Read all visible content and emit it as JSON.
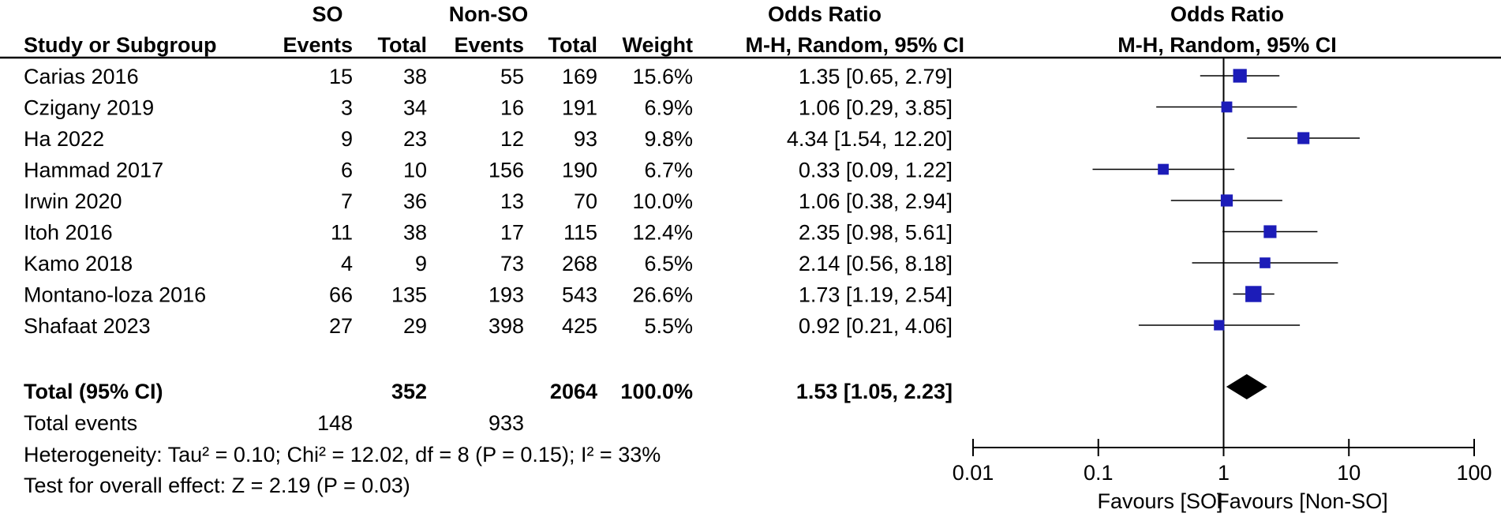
{
  "headers": {
    "group_so": "SO",
    "group_nonso": "Non-SO",
    "or_group": "Odds Ratio",
    "plot_group": "Odds Ratio",
    "study": "Study or Subgroup",
    "so_events": "Events",
    "so_total": "Total",
    "nonso_events": "Events",
    "nonso_total": "Total",
    "weight": "Weight",
    "or_method": "M-H, Random, 95% CI",
    "plot_method": "M-H, Random, 95% CI"
  },
  "totals_row": {
    "label": "Total (95% CI)",
    "so_total": "352",
    "nonso_total": "2064",
    "weight": "100.0%",
    "or_text": "1.53 [1.05, 2.23]"
  },
  "total_events": {
    "label": "Total events",
    "so": "148",
    "nonso": "933"
  },
  "heterogeneity": "Heterogeneity: Tau² = 0.10; Chi² = 12.02, df = 8 (P = 0.15); I² = 33%",
  "overall_effect": "Test for overall effect: Z = 2.19 (P = 0.03)",
  "axis": {
    "scale": "log",
    "ticks": [
      "0.01",
      "0.1",
      "1",
      "10",
      "100"
    ],
    "favours_left": "Favours [SO]",
    "favours_right": "Favours [Non-SO]"
  },
  "colors": {
    "marker": "#1c1cb8",
    "diamond": "#000000"
  },
  "chart_data": {
    "type": "forest",
    "x_scale": "log",
    "xlim": [
      0.01,
      100
    ],
    "studies": [
      {
        "name": "Carias 2016",
        "so_events": "15",
        "so_total": "38",
        "nonso_events": "55",
        "nonso_total": "169",
        "weight": "15.6%",
        "or_text": "1.35 [0.65, 2.79]",
        "or": 1.35,
        "lo": 0.65,
        "hi": 2.79,
        "w": 15.6
      },
      {
        "name": "Czigany 2019",
        "so_events": "3",
        "so_total": "34",
        "nonso_events": "16",
        "nonso_total": "191",
        "weight": "6.9%",
        "or_text": "1.06 [0.29, 3.85]",
        "or": 1.06,
        "lo": 0.29,
        "hi": 3.85,
        "w": 6.9
      },
      {
        "name": "Ha 2022",
        "so_events": "9",
        "so_total": "23",
        "nonso_events": "12",
        "nonso_total": "93",
        "weight": "9.8%",
        "or_text": "4.34 [1.54, 12.20]",
        "or": 4.34,
        "lo": 1.54,
        "hi": 12.2,
        "w": 9.8
      },
      {
        "name": "Hammad 2017",
        "so_events": "6",
        "so_total": "10",
        "nonso_events": "156",
        "nonso_total": "190",
        "weight": "6.7%",
        "or_text": "0.33 [0.09, 1.22]",
        "or": 0.33,
        "lo": 0.09,
        "hi": 1.22,
        "w": 6.7
      },
      {
        "name": "Irwin 2020",
        "so_events": "7",
        "so_total": "36",
        "nonso_events": "13",
        "nonso_total": "70",
        "weight": "10.0%",
        "or_text": "1.06 [0.38, 2.94]",
        "or": 1.06,
        "lo": 0.38,
        "hi": 2.94,
        "w": 10.0
      },
      {
        "name": "Itoh 2016",
        "so_events": "11",
        "so_total": "38",
        "nonso_events": "17",
        "nonso_total": "115",
        "weight": "12.4%",
        "or_text": "2.35 [0.98, 5.61]",
        "or": 2.35,
        "lo": 0.98,
        "hi": 5.61,
        "w": 12.4
      },
      {
        "name": "Kamo 2018",
        "so_events": "4",
        "so_total": "9",
        "nonso_events": "73",
        "nonso_total": "268",
        "weight": "6.5%",
        "or_text": "2.14 [0.56, 8.18]",
        "or": 2.14,
        "lo": 0.56,
        "hi": 8.18,
        "w": 6.5
      },
      {
        "name": "Montano-loza 2016",
        "so_events": "66",
        "so_total": "135",
        "nonso_events": "193",
        "nonso_total": "543",
        "weight": "26.6%",
        "or_text": "1.73 [1.19, 2.54]",
        "or": 1.73,
        "lo": 1.19,
        "hi": 2.54,
        "w": 26.6
      },
      {
        "name": "Shafaat 2023",
        "so_events": "27",
        "so_total": "29",
        "nonso_events": "398",
        "nonso_total": "425",
        "weight": "5.5%",
        "or_text": "0.92 [0.21, 4.06]",
        "or": 0.92,
        "lo": 0.21,
        "hi": 4.06,
        "w": 5.5
      }
    ],
    "pooled": {
      "or": 1.53,
      "lo": 1.05,
      "hi": 2.23
    }
  }
}
